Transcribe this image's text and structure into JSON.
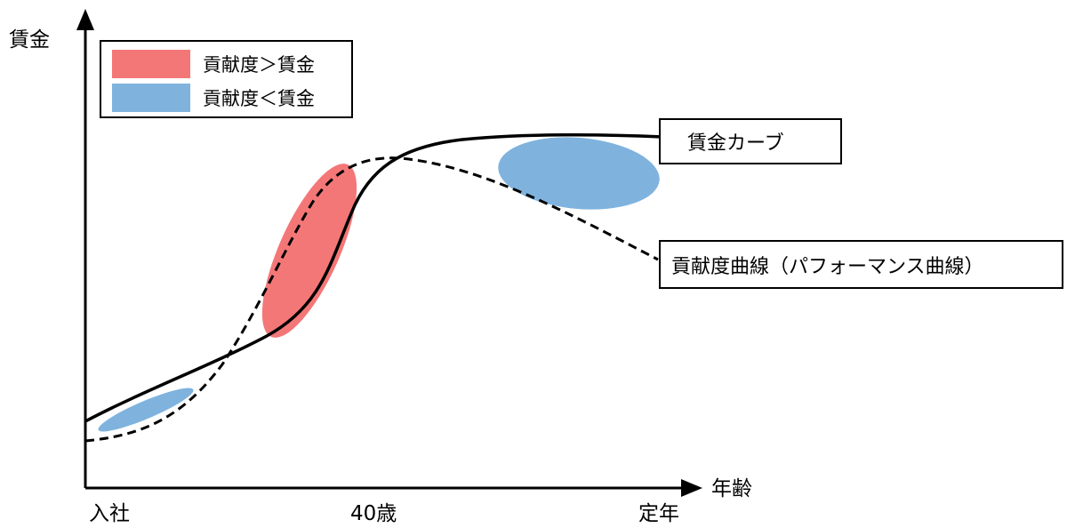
{
  "axes": {
    "y_label": "賃金",
    "x_label": "年齢",
    "x_ticks": [
      "入社",
      "40歳",
      "定年"
    ]
  },
  "legend": {
    "items": [
      {
        "label": "貢献度＞賃金",
        "color": "#f47777"
      },
      {
        "label": "貢献度＜賃金",
        "color": "#7fb3de"
      }
    ]
  },
  "curves": {
    "wage_curve_label": "賃金カーブ",
    "contribution_curve_label": "貢献度曲線（パフォーマンス曲線）"
  },
  "colors": {
    "over_contribution": "#f47777",
    "under_contribution": "#7fb3de",
    "line": "#000000"
  }
}
